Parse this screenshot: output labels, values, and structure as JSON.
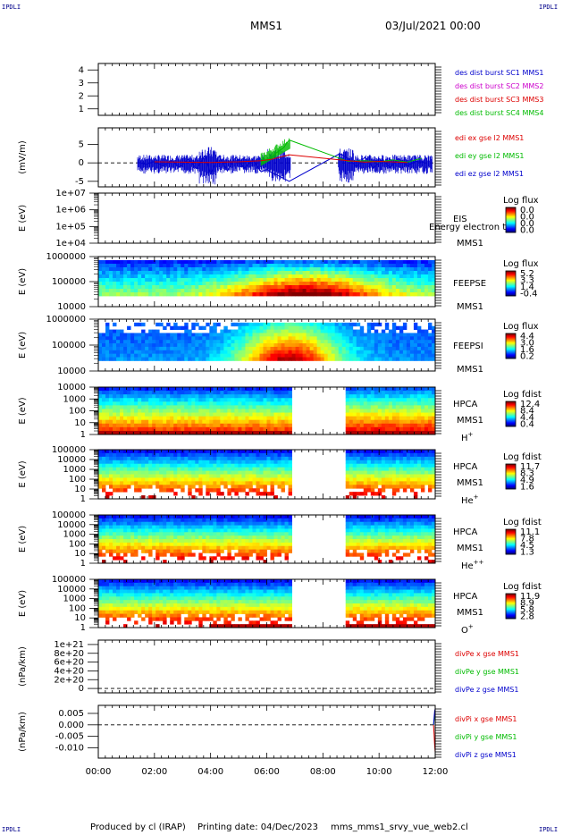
{
  "header": {
    "corner_tl": "IPDLI",
    "corner_tr": "IPDLI",
    "corner_bl": "IPDLI",
    "corner_br": "IPDLI",
    "mission": "MMS1",
    "date": "03/Jul/2021 00:00"
  },
  "footer": {
    "produced": "Produced by cl (IRAP)",
    "printing": "Printing date: 04/Dec/2023",
    "script": "mms_mms1_srvy_vue_web2.cl"
  },
  "x_axis": {
    "ticks": [
      "00:00",
      "02:00",
      "04:00",
      "06:00",
      "08:00",
      "10:00",
      "12:00"
    ],
    "range_hours": [
      0,
      12
    ]
  },
  "colors": {
    "blue": "#0000cc",
    "magenta": "#cc00cc",
    "red": "#dd0000",
    "green": "#00bb00"
  },
  "chart_data": [
    {
      "type": "line",
      "panel": "des-dist",
      "ylim": [
        0.5,
        4.5
      ],
      "yticks": [
        "1",
        "2",
        "3",
        "4"
      ],
      "ylabel": "",
      "legend": [
        {
          "text": "des dist burst SC1 MMS1",
          "color": "#0000cc"
        },
        {
          "text": "des dist burst SC2 MMS2",
          "color": "#cc00cc"
        },
        {
          "text": "des dist burst SC3 MMS3",
          "color": "#dd0000"
        },
        {
          "text": "des dist burst SC4 MMS4",
          "color": "#00bb00"
        }
      ],
      "series": []
    },
    {
      "type": "line",
      "panel": "edi",
      "ylabel": "(mV/m)",
      "ylim": [
        -6.5,
        9.5
      ],
      "yticks": [
        "5",
        "0",
        "-5"
      ],
      "yticks_at": [
        5,
        0,
        -5
      ],
      "legend": [
        {
          "text": "edi ex gse l2 MMS1",
          "color": "#dd0000"
        },
        {
          "text": "edi ey gse l2 MMS1",
          "color": "#00bb00"
        },
        {
          "text": "edi ez gse l2 MMS1",
          "color": "#0000cc"
        }
      ],
      "series": [
        {
          "name": "edi ez gse l2 MMS1",
          "color": "#0000cc",
          "x": [
            1.4,
            1.7,
            2.0,
            2.3,
            2.6,
            2.9,
            3.2,
            3.5,
            3.8,
            4.0,
            4.3,
            4.6,
            4.9,
            5.2,
            5.5,
            5.8,
            6.0,
            6.2,
            6.4,
            6.6,
            6.8,
            8.6,
            8.9,
            9.2,
            9.5,
            9.8,
            10.1,
            10.4,
            10.7,
            11.0,
            11.3,
            11.6
          ],
          "y": [
            0.2,
            -0.4,
            0.4,
            -0.8,
            0.6,
            -1.2,
            1.0,
            -1.6,
            2.0,
            -3.0,
            1.8,
            -2.2,
            1.6,
            -1.4,
            0.8,
            -2.4,
            -1.8,
            -2.8,
            -3.4,
            -4.2,
            -5.0,
            2.5,
            1.2,
            -1.0,
            1.6,
            -1.4,
            0.8,
            -1.2,
            1.2,
            -0.8,
            0.4,
            0.2
          ]
        },
        {
          "name": "edi ey gse l2 MMS1",
          "color": "#00bb00",
          "x": [
            5.8,
            6.0,
            6.2,
            6.4,
            6.6,
            6.8,
            8.9,
            9.5,
            10.0,
            10.5,
            11.0,
            11.5
          ],
          "y": [
            0.2,
            1.0,
            1.8,
            3.0,
            4.2,
            6.2,
            0.4,
            0.6,
            0.3,
            0.8,
            0.2,
            1.2
          ]
        },
        {
          "name": "edi ex gse l2 MMS1",
          "color": "#dd0000",
          "x": [
            2.0,
            3.0,
            4.0,
            5.0,
            5.8,
            6.2,
            6.6,
            6.8,
            8.9,
            9.5,
            10.0,
            11.0
          ],
          "y": [
            0.3,
            0.2,
            0.1,
            0.3,
            0.6,
            1.0,
            1.8,
            2.2,
            0.6,
            0.2,
            0.4,
            0.1
          ]
        }
      ]
    },
    {
      "type": "heatmap",
      "panel": "eis",
      "ylabel": "E (eV)",
      "yticks": [
        "1e+07",
        "1e+06",
        "1e+05",
        "1e+04"
      ],
      "instrument": [
        "EIS",
        "MMS1"
      ],
      "overlay_text": "Energy electron to",
      "colorbar_title": "Log flux",
      "colorbar_ticks": [
        "0.0",
        "0.0",
        "0.0",
        "0.0"
      ],
      "pattern": "empty",
      "gaps_hours": []
    },
    {
      "type": "heatmap",
      "panel": "feeps-e",
      "ylabel": "E (eV)",
      "yticks": [
        "1000000",
        "100000",
        "10000"
      ],
      "instrument": [
        "FEEPSE",
        "MMS1"
      ],
      "colorbar_title": "Log flux",
      "colorbar_ticks": [
        "5.2",
        "3.3",
        "1.4",
        "-0.4"
      ],
      "pattern": "feepse",
      "gaps_hours": []
    },
    {
      "type": "heatmap",
      "panel": "feeps-i",
      "ylabel": "E (eV)",
      "yticks": [
        "1000000",
        "100000",
        "10000"
      ],
      "instrument": [
        "FEEPSI",
        "MMS1"
      ],
      "colorbar_title": "Log flux",
      "colorbar_ticks": [
        "4.4",
        "3.0",
        "1.6",
        "0.2"
      ],
      "pattern": "feepsi",
      "gaps_hours": []
    },
    {
      "type": "heatmap",
      "panel": "hpca-h",
      "ylabel": "E (eV)",
      "yticks": [
        "10000",
        "1000",
        "100",
        "10",
        "1"
      ],
      "instrument": [
        "HPCA",
        "MMS1"
      ],
      "species": "H+",
      "colorbar_title": "Log fdist",
      "colorbar_ticks": [
        "12.4",
        "8.4",
        "4.4",
        "0.4"
      ],
      "pattern": "hpca",
      "gaps_hours": [
        [
          6.85,
          8.85
        ]
      ]
    },
    {
      "type": "heatmap",
      "panel": "hpca-he",
      "ylabel": "E (eV)",
      "yticks": [
        "100000",
        "10000",
        "1000",
        "100",
        "10",
        "1"
      ],
      "instrument": [
        "HPCA",
        "MMS1"
      ],
      "species": "He+",
      "colorbar_title": "Log fdist",
      "colorbar_ticks": [
        "11.7",
        "8.3",
        "4.9",
        "1.6"
      ],
      "pattern": "hpca-sparse",
      "gaps_hours": [
        [
          6.85,
          8.85
        ]
      ]
    },
    {
      "type": "heatmap",
      "panel": "hpca-hepp",
      "ylabel": "E (eV)",
      "yticks": [
        "100000",
        "10000",
        "1000",
        "100",
        "10",
        "1"
      ],
      "instrument": [
        "HPCA",
        "MMS1"
      ],
      "species": "He++",
      "colorbar_title": "Log fdist",
      "colorbar_ticks": [
        "11.1",
        "7.8",
        "4.5",
        "1.3"
      ],
      "pattern": "hpca-sparse",
      "gaps_hours": [
        [
          6.85,
          8.85
        ]
      ]
    },
    {
      "type": "heatmap",
      "panel": "hpca-o",
      "ylabel": "E (eV)",
      "yticks": [
        "100000",
        "10000",
        "1000",
        "100",
        "10",
        "1"
      ],
      "instrument": [
        "HPCA",
        "MMS1"
      ],
      "species": "O+",
      "colorbar_title": "Log fdist",
      "colorbar_ticks": [
        "11.9",
        "8.9",
        "5.8",
        "2.8"
      ],
      "pattern": "hpca-o",
      "gaps_hours": [
        [
          6.85,
          8.85
        ]
      ]
    },
    {
      "type": "line",
      "panel": "divpe",
      "ylabel": "(nPa/km)",
      "ylim": [
        -1e+20,
        1.1e+21
      ],
      "yticks": [
        "1e+21",
        "8e+20",
        "6e+20",
        "4e+20",
        "2e+20",
        "0"
      ],
      "yticks_at": [
        1e+21,
        8e+20,
        6e+20,
        4e+20,
        2e+20,
        0
      ],
      "legend": [
        {
          "text": "divPe x gse MMS1",
          "color": "#dd0000"
        },
        {
          "text": "divPe y gse MMS1",
          "color": "#00bb00"
        },
        {
          "text": "divPe z gse MMS1",
          "color": "#0000cc"
        }
      ],
      "series": []
    },
    {
      "type": "line",
      "panel": "divpi",
      "ylabel": "(nPa/km)",
      "ylim": [
        -0.0145,
        0.0085
      ],
      "yticks": [
        "0.005",
        "0.000",
        "-0.005",
        "-0.010"
      ],
      "yticks_at": [
        0.005,
        0,
        -0.005,
        -0.01
      ],
      "legend": [
        {
          "text": "divPi x gse MMS1",
          "color": "#dd0000"
        },
        {
          "text": "divPi y gse MMS1",
          "color": "#00bb00"
        },
        {
          "text": "divPi z gse MMS1",
          "color": "#0000cc"
        }
      ],
      "series": [
        {
          "name": "divPi x gse MMS1",
          "color": "#dd0000",
          "x": [
            11.94,
            11.96,
            11.98,
            12.0
          ],
          "y": [
            0.0,
            -0.004,
            -0.009,
            -0.012
          ]
        },
        {
          "name": "divPi y gse MMS1",
          "color": "#00bb00",
          "x": [
            11.94,
            11.96,
            11.98,
            12.0
          ],
          "y": [
            0.0,
            0.002,
            0.004,
            0.003
          ]
        },
        {
          "name": "divPi z gse MMS1",
          "color": "#0000cc",
          "x": [
            11.94,
            11.96,
            11.98,
            12.0
          ],
          "y": [
            0.0,
            0.003,
            0.006,
            0.007
          ]
        }
      ]
    }
  ]
}
